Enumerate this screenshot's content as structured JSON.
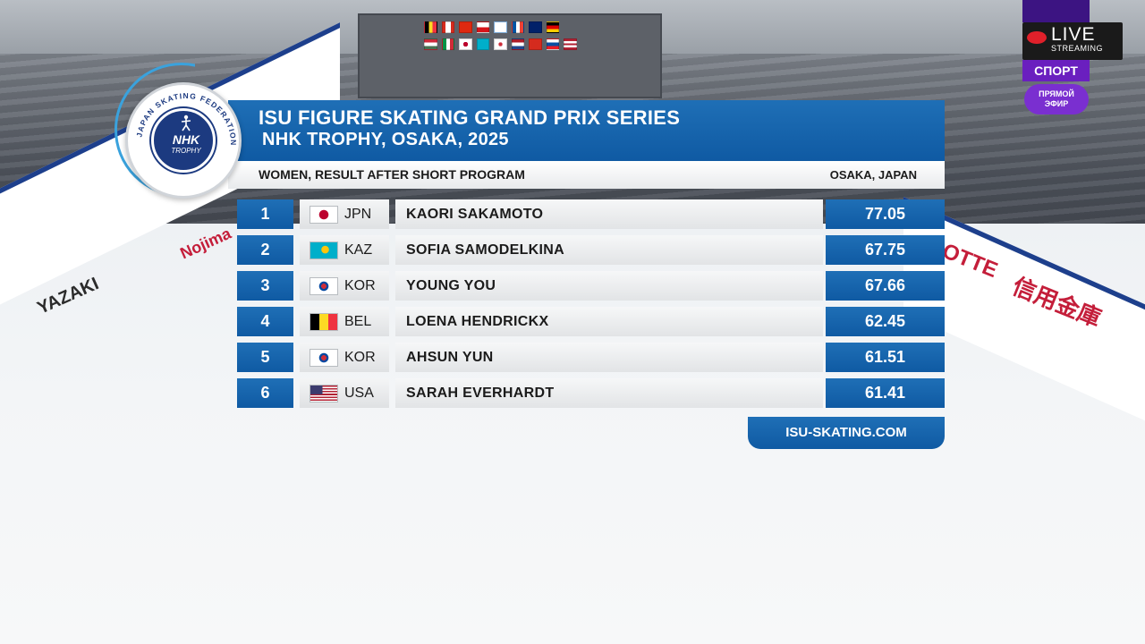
{
  "broadcast": {
    "live_label": "LIVE",
    "streaming_label": "STREAMING",
    "channel_label": "СПОРТ",
    "onair_line1": "ПРЯМОЙ",
    "onair_line2": "ЭФИР"
  },
  "arena_ads": {
    "yazaki": "YAZAKI",
    "nojima": "Nojima",
    "lotte": "OTTE",
    "shinyo": "信用金庫"
  },
  "logo": {
    "ring_text": "JAPAN SKATING FEDERATION",
    "nhk": "NHK",
    "trophy": "TROPHY"
  },
  "header": {
    "title_line1": "ISU FIGURE SKATING GRAND PRIX SERIES",
    "title_line2": "NHK TROPHY, OSAKA, 2025",
    "subtitle": "WOMEN, RESULT AFTER SHORT PROGRAM",
    "location": "OSAKA, JAPAN"
  },
  "results": [
    {
      "rank": "1",
      "nation": "JPN",
      "name": "KAORI SAKAMOTO",
      "score": "77.05"
    },
    {
      "rank": "2",
      "nation": "KAZ",
      "name": "SOFIA SAMODELKINA",
      "score": "67.75"
    },
    {
      "rank": "3",
      "nation": "KOR",
      "name": "YOUNG YOU",
      "score": "67.66"
    },
    {
      "rank": "4",
      "nation": "BEL",
      "name": "LOENA HENDRICKX",
      "score": "62.45"
    },
    {
      "rank": "5",
      "nation": "KOR",
      "name": "AHSUN YUN",
      "score": "61.51"
    },
    {
      "rank": "6",
      "nation": "USA",
      "name": "SARAH EVERHARDT",
      "score": "61.41"
    }
  ],
  "footer": {
    "website": "ISU-SKATING.COM"
  },
  "colors": {
    "accent_blue": "#0f5aa3",
    "live_red": "#e0202a",
    "channel_purple": "#6a1fbf"
  }
}
